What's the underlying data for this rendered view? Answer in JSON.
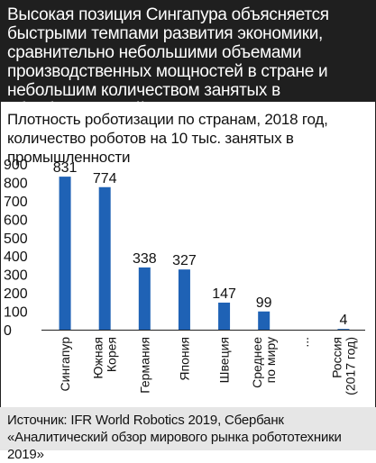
{
  "header": {
    "text": "Высокая позиция Сингапура объясняется быстрыми темпами развития экономики, сравнительно небольшими объемами производственных мощностей в стране и небольшим количеством занятых в обрабатывающей промышленности"
  },
  "chart_data": {
    "type": "bar",
    "title": "Плотность роботизации по странам, 2018 год, количество роботов на 10 тыс. занятых в промышленности",
    "categories": [
      "Сингапур",
      "Южная Корея",
      "Германия",
      "Япония",
      "Швеция",
      "Среднее по миру",
      "...",
      "Россия (2017 год)"
    ],
    "category_lines": [
      [
        "Сингапур"
      ],
      [
        "Южная",
        "Корея"
      ],
      [
        "Германия"
      ],
      [
        "Япония"
      ],
      [
        "Швеция"
      ],
      [
        "Среднее",
        "по миру"
      ],
      [
        "..."
      ],
      [
        "Россия",
        "(2017 год)"
      ]
    ],
    "values": [
      831,
      774,
      338,
      327,
      147,
      99,
      null,
      4
    ],
    "value_labels": [
      "831",
      "774",
      "338",
      "327",
      "147",
      "99",
      "",
      "4"
    ],
    "ylim": [
      0,
      900
    ],
    "yticks": [
      0,
      100,
      200,
      300,
      400,
      500,
      600,
      700,
      800,
      900
    ],
    "grid": false,
    "bar_color": "#1f62b5",
    "xlabel": "",
    "ylabel": ""
  },
  "source": {
    "text": "Источник: IFR World Robotics 2019, Сбербанк «Аналитический обзор мирового рынка робототехники 2019»"
  }
}
